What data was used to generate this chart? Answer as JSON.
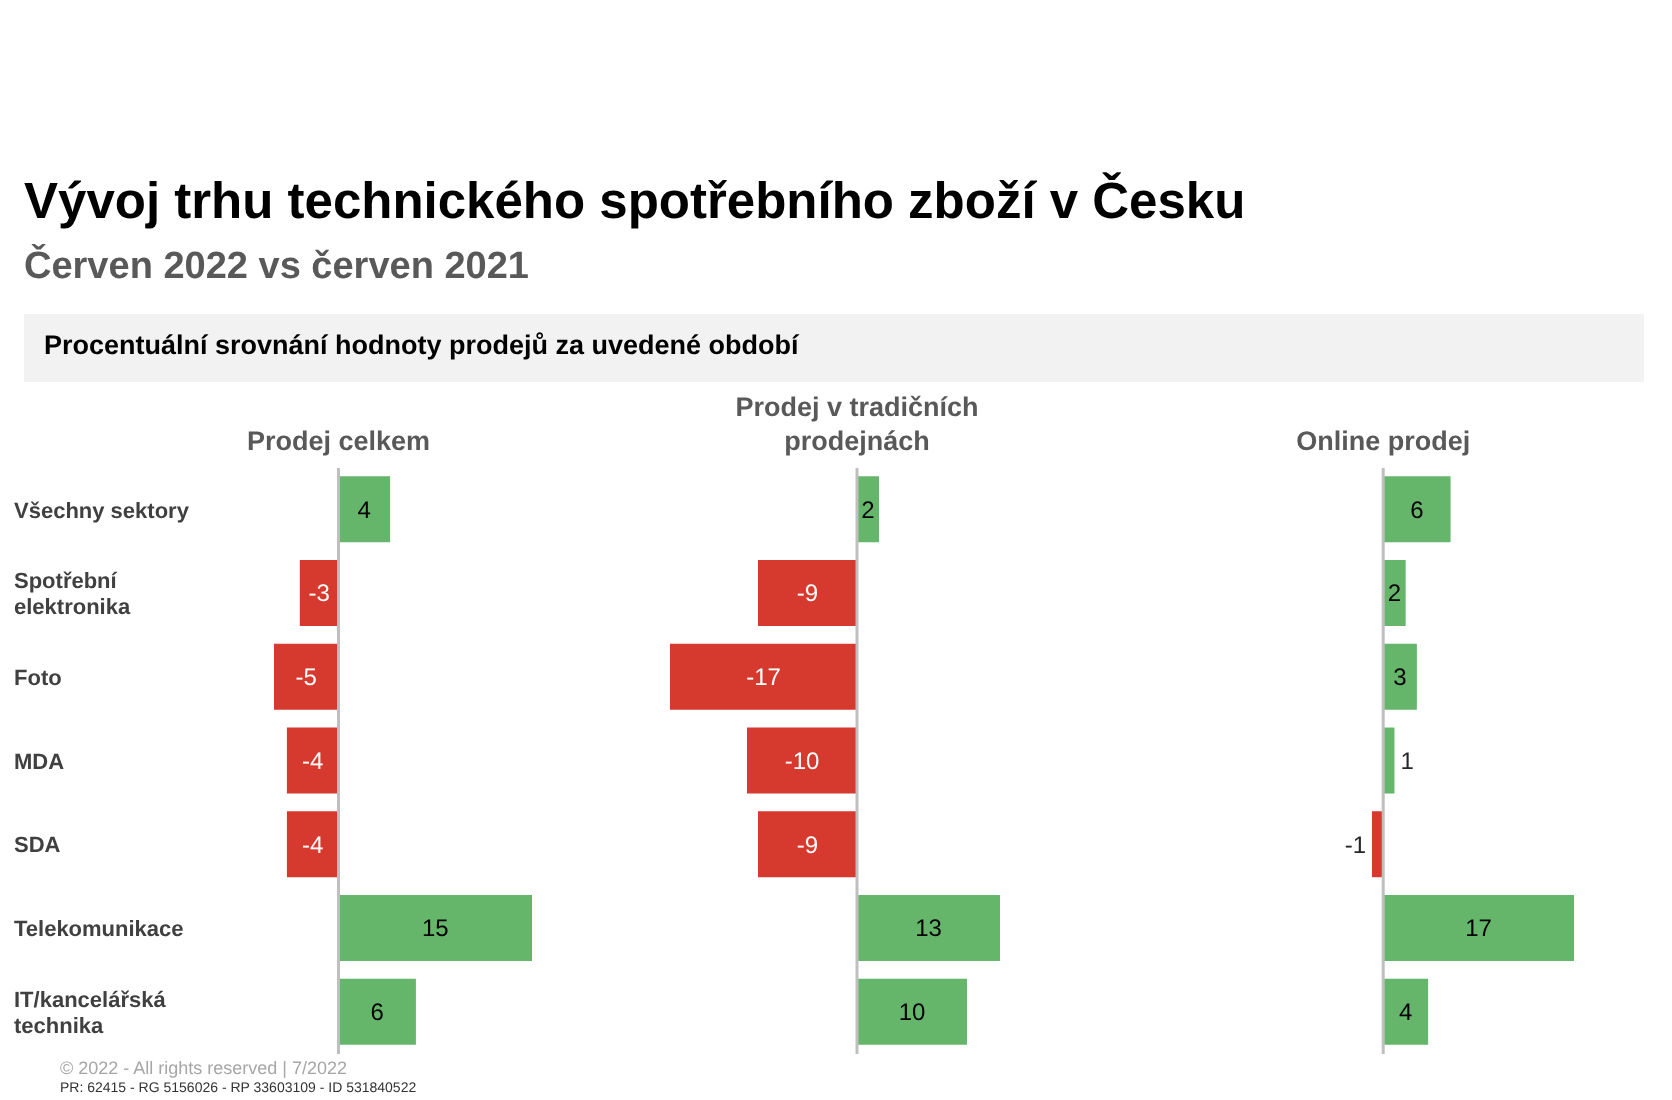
{
  "chart_data": [
    {
      "type": "other",
      "title": "Vývoj trhu technického spotřebního zboží v Česku",
      "subtitle": "Červen 2022 vs červen 2021",
      "annotations": [
        "Procentuální srovnání hodnoty prodejů za uvedené období",
        "© 2022 - All rights reserved | 7/2022",
        "PR: 62415 - RG 5156026 - RP 33603109 - ID 531840522"
      ]
    },
    {
      "type": "bar",
      "orientation": "horizontal",
      "title": "Prodej celkem",
      "categories": [
        "Všechny sektory",
        "Spotřební elektronika",
        "Foto",
        "MDA",
        "SDA",
        "Telekomunikace",
        "IT/kancelářská technika"
      ],
      "values": [
        4,
        -3,
        -5,
        -4,
        -4,
        15,
        6
      ],
      "colors": [
        "#65b66a",
        "#d6392e",
        "#d6392e",
        "#d6392e",
        "#d6392e",
        "#65b66a",
        "#65b66a"
      ],
      "data_labels": true,
      "tick_labels": "y"
    },
    {
      "type": "bar",
      "orientation": "horizontal",
      "title": "Prodej v tradičních prodejnách",
      "categories": [
        null,
        null,
        null,
        null,
        null,
        null,
        null
      ],
      "values": [
        2,
        -9,
        -17,
        -10,
        -9,
        13,
        10
      ],
      "colors": [
        "#65b66a",
        "#d6392e",
        "#d6392e",
        "#d6392e",
        "#d6392e",
        "#65b66a",
        "#65b66a"
      ],
      "data_labels": true
    },
    {
      "type": "bar",
      "orientation": "horizontal",
      "title": "Online prodej",
      "categories": [
        null,
        null,
        null,
        null,
        null,
        null,
        null
      ],
      "values": [
        6,
        2,
        3,
        1,
        -1,
        17,
        4
      ],
      "colors": [
        "#65b66a",
        "#65b66a",
        "#65b66a",
        "#65b66a",
        "#d6392e",
        "#65b66a",
        "#65b66a"
      ],
      "data_labels": true
    }
  ]
}
